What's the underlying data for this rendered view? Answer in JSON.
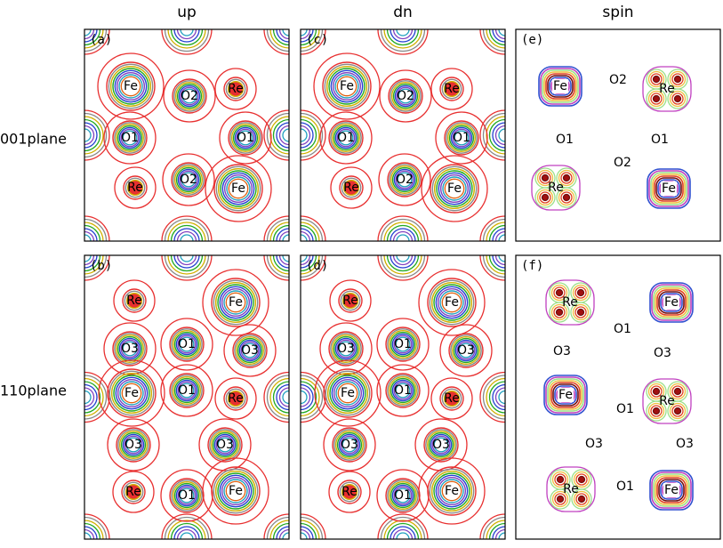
{
  "columns": [
    "up",
    "dn",
    "spin"
  ],
  "rows": [
    "001plane",
    "110plane"
  ],
  "panels": [
    {
      "label": "(a)",
      "atoms": [
        "Fe",
        "Re",
        "O2",
        "O1",
        "O1",
        "Re",
        "O2",
        "Fe"
      ]
    },
    {
      "label": "(c)",
      "atoms": [
        "Fe",
        "Re",
        "O2",
        "O1",
        "O1",
        "Re",
        "O2",
        "Fe"
      ]
    },
    {
      "label": "(e)",
      "atoms": [
        "Fe",
        "O2",
        "Re",
        "O1",
        "O1",
        "O2",
        "Re",
        "Fe"
      ]
    },
    {
      "label": "(b)",
      "atoms": [
        "Re",
        "Fe",
        "O1",
        "O3",
        "O3",
        "Fe",
        "O1",
        "Re",
        "O3",
        "O3",
        "Re",
        "Fe",
        "O1"
      ]
    },
    {
      "label": "(d)",
      "atoms": [
        "Re",
        "Fe",
        "O1",
        "O3",
        "O3",
        "Fe",
        "O1",
        "Re",
        "O3",
        "O3",
        "Re",
        "Fe",
        "O1"
      ]
    },
    {
      "label": "(f)",
      "atoms": [
        "Re",
        "Fe",
        "O1",
        "O3",
        "O3",
        "Fe",
        "Re",
        "O1",
        "O3",
        "O3",
        "Re",
        "O1",
        "Fe"
      ]
    }
  ]
}
